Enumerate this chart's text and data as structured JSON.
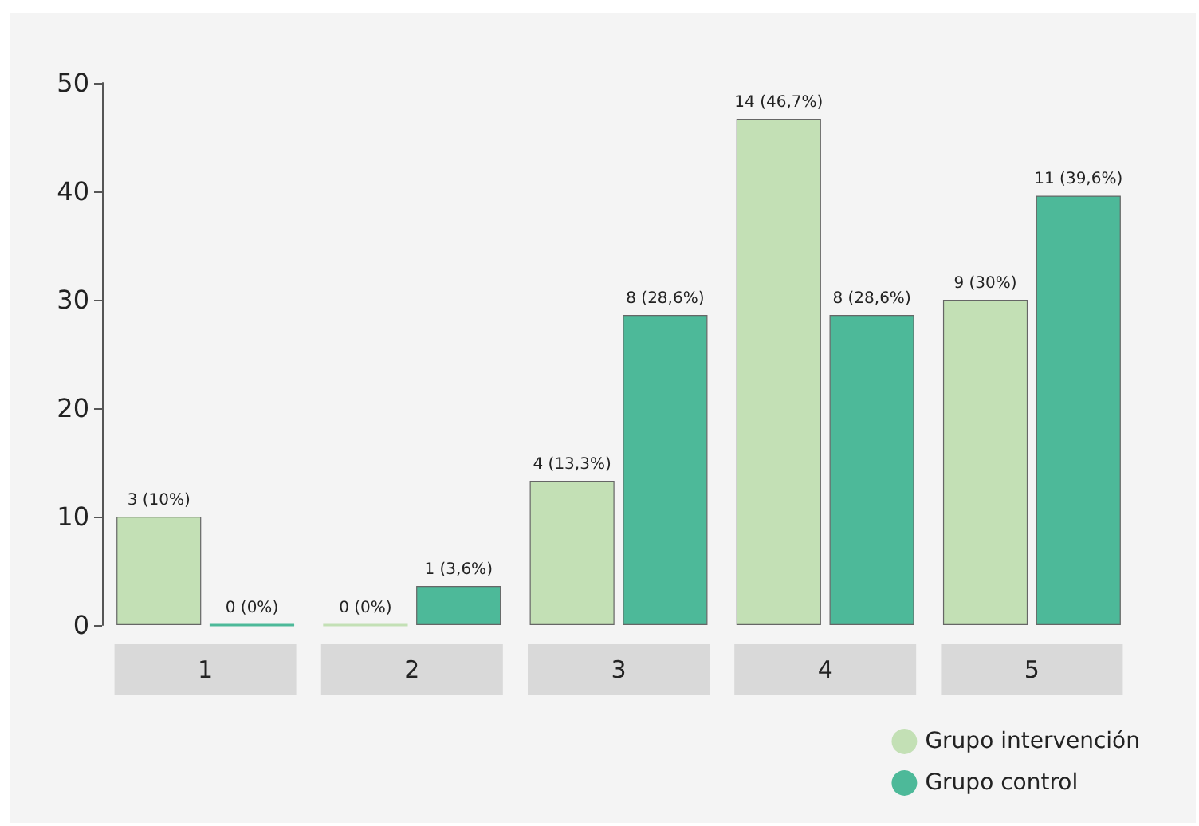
{
  "chart_data": {
    "type": "bar",
    "categories": [
      "1",
      "2",
      "3",
      "4",
      "5"
    ],
    "series": [
      {
        "name": "Grupo intervención",
        "color": "#c3e0b5",
        "values": [
          10,
          0,
          13.3,
          46.7,
          30
        ],
        "value_labels": [
          "3 (10%)",
          "0 (0%)",
          "4 (13,3%)",
          "14 (46,7%)",
          "9 (30%)"
        ]
      },
      {
        "name": "Grupo control",
        "color": "#4db999",
        "values": [
          0,
          3.6,
          28.6,
          28.6,
          39.6
        ],
        "value_labels": [
          "0 (0%)",
          "1 (3,6%)",
          "8 (28,6%)",
          "8 (28,6%)",
          "11 (39,6%)"
        ]
      }
    ],
    "ylim": [
      0,
      50
    ],
    "yticks": [
      0,
      10,
      20,
      30,
      40,
      50
    ],
    "grid": false,
    "legend": "bottom right"
  }
}
